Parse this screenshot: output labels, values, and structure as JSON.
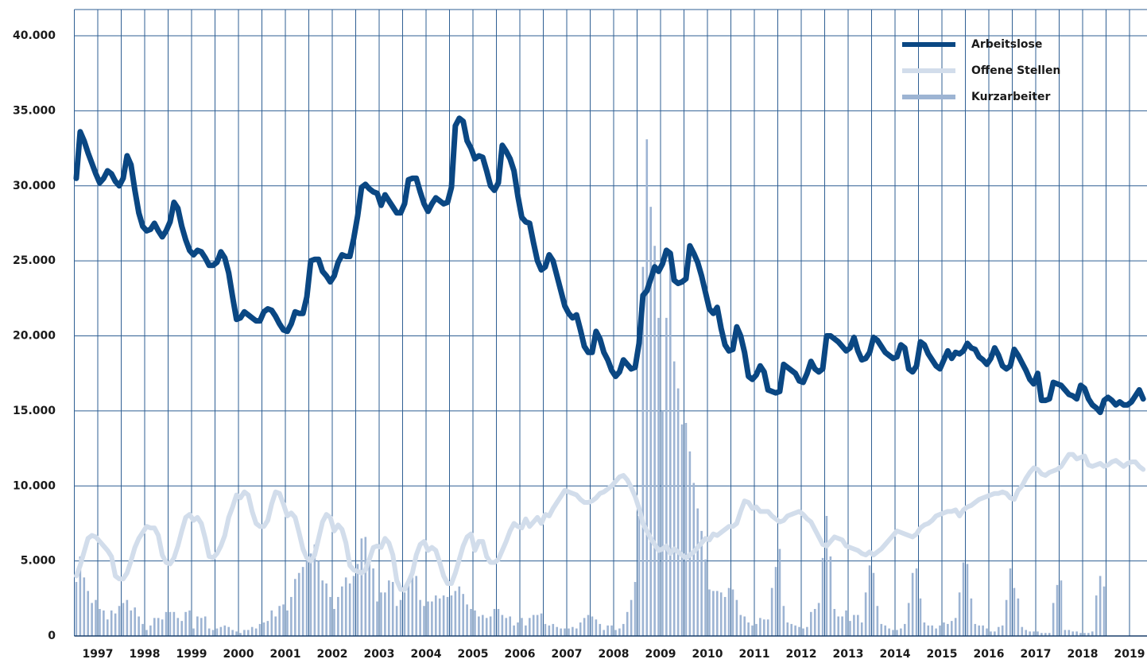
{
  "chart_data": {
    "type": "line",
    "categories": [
      null,
      null,
      null,
      null,
      null,
      null,
      "1997",
      null,
      null,
      null,
      null,
      null,
      null,
      null,
      null,
      null,
      null,
      null,
      "1998",
      null,
      null,
      null,
      null,
      null,
      null,
      null,
      null,
      null,
      null,
      null,
      "1999",
      null,
      null,
      null,
      null,
      null,
      null,
      null,
      null,
      null,
      null,
      null,
      "2000",
      null,
      null,
      null,
      null,
      null,
      null,
      null,
      null,
      null,
      null,
      null,
      "2001",
      null,
      null,
      null,
      null,
      null,
      null,
      null,
      null,
      null,
      null,
      null,
      "2002",
      null,
      null,
      null,
      null,
      null,
      null,
      null,
      null,
      null,
      null,
      null,
      "2003",
      null,
      null,
      null,
      null,
      null,
      null,
      null,
      null,
      null,
      null,
      null,
      "2004",
      null,
      null,
      null,
      null,
      null,
      null,
      null,
      null,
      null,
      null,
      null,
      "2005",
      null,
      null,
      null,
      null,
      null,
      null,
      null,
      null,
      null,
      null,
      null,
      "2006",
      null,
      null,
      null,
      null,
      null,
      null,
      null,
      null,
      null,
      null,
      null,
      "2007",
      null,
      null,
      null,
      null,
      null,
      null,
      null,
      null,
      null,
      null,
      null,
      "2008",
      null,
      null,
      null,
      null,
      null,
      null,
      null,
      null,
      null,
      null,
      null,
      "2009",
      null,
      null,
      null,
      null,
      null,
      null,
      null,
      null,
      null,
      null,
      null,
      "2010",
      null,
      null,
      null,
      null,
      null,
      null,
      null,
      null,
      null,
      null,
      null,
      "2011",
      null,
      null,
      null,
      null,
      null,
      null,
      null,
      null,
      null,
      null,
      null,
      "2012",
      null,
      null,
      null,
      null,
      null,
      null,
      null,
      null,
      null,
      null,
      null,
      "2013",
      null,
      null,
      null,
      null,
      null,
      null,
      null,
      null,
      null,
      null,
      null,
      "2014",
      null,
      null,
      null,
      null,
      null,
      null,
      null,
      null,
      null,
      null,
      null,
      "2015",
      null,
      null,
      null,
      null,
      null,
      null,
      null,
      null,
      null,
      null,
      null,
      "2016",
      null,
      null,
      null,
      null,
      null,
      null,
      null,
      null,
      null,
      null,
      null,
      "2017",
      null,
      null,
      null,
      null,
      null,
      null,
      null,
      null,
      null,
      null,
      null,
      "2018",
      null,
      null,
      null,
      null,
      null,
      null,
      null,
      null,
      null,
      null,
      null,
      "2019",
      null,
      null,
      null
    ],
    "series": [
      {
        "name": "Kurzarbeiter",
        "type": "bar",
        "color": "#9db4d3",
        "values": [
          3600,
          5300,
          3900,
          3000,
          2200,
          2400,
          1800,
          1700,
          1100,
          1700,
          1500,
          2000,
          2200,
          2400,
          1700,
          1900,
          1300,
          800,
          400,
          700,
          1200,
          1200,
          1100,
          1600,
          1600,
          1600,
          1200,
          1000,
          1600,
          1700,
          500,
          1300,
          1200,
          1300,
          500,
          400,
          500,
          600,
          700,
          600,
          400,
          300,
          200,
          400,
          400,
          600,
          500,
          800,
          900,
          1000,
          1700,
          1300,
          2000,
          2100,
          1700,
          2600,
          3800,
          4200,
          4600,
          5000,
          5500,
          6100,
          5000,
          3700,
          3500,
          2600,
          1800,
          2600,
          3300,
          3900,
          3500,
          4000,
          4800,
          6500,
          6600,
          5000,
          4500,
          2300,
          2900,
          2900,
          3700,
          3600,
          2000,
          2400,
          2900,
          3700,
          3900,
          4000,
          2400,
          2000,
          2300,
          2300,
          2700,
          2500,
          2700,
          2600,
          2700,
          3000,
          3300,
          2800,
          2100,
          1800,
          1700,
          1300,
          1400,
          1200,
          1300,
          1800,
          1800,
          1400,
          1200,
          1300,
          700,
          900,
          1200,
          700,
          1200,
          1400,
          1400,
          1500,
          800,
          700,
          800,
          600,
          500,
          500,
          500,
          600,
          500,
          900,
          1200,
          1400,
          1300,
          1100,
          800,
          400,
          700,
          700,
          400,
          500,
          800,
          1600,
          2400,
          3600,
          8000,
          24600,
          33100,
          28600,
          26000,
          21200,
          15000,
          21200,
          24600,
          18300,
          16500,
          14100,
          14200,
          12300,
          10200,
          8500,
          7000,
          5100,
          3100,
          3000,
          3000,
          2900,
          2600,
          3200,
          3100,
          2400,
          1400,
          1300,
          900,
          700,
          800,
          1200,
          1100,
          1100,
          3200,
          4600,
          5800,
          2000,
          900,
          800,
          700,
          600,
          500,
          600,
          1600,
          1800,
          2200,
          5200,
          8000,
          5300,
          1800,
          1300,
          1300,
          1700,
          1000,
          1400,
          1400,
          900,
          2900,
          4700,
          4200,
          2000,
          800,
          700,
          500,
          400,
          400,
          500,
          800,
          2200,
          4200,
          4500,
          2500,
          900,
          700,
          700,
          500,
          700,
          900,
          800,
          1000,
          1200,
          2900,
          4900,
          4800,
          2500,
          800,
          700,
          700,
          500,
          300,
          300,
          600,
          700,
          2400,
          4500,
          3200,
          2500,
          600,
          400,
          300,
          300,
          300,
          200,
          200,
          200,
          2200,
          3400,
          3700,
          400,
          400,
          300,
          300,
          200,
          200,
          200,
          300,
          2700,
          4000,
          3300,
          null,
          null,
          null,
          null,
          null,
          null,
          null,
          null,
          null,
          null
        ]
      },
      {
        "name": "Offene Stellen",
        "color": "#d2ddeb",
        "values": [
          4000,
          4700,
          5600,
          6500,
          6700,
          6600,
          6300,
          6000,
          5700,
          5300,
          4000,
          3800,
          3800,
          4200,
          5000,
          5900,
          6500,
          6900,
          7300,
          7200,
          7200,
          6700,
          5400,
          4900,
          4800,
          5200,
          6000,
          7000,
          7900,
          8100,
          7700,
          7900,
          7500,
          6500,
          5300,
          5200,
          5500,
          6000,
          6700,
          7900,
          8600,
          9400,
          9200,
          9600,
          9400,
          8300,
          7500,
          7300,
          7300,
          7700,
          8800,
          9600,
          9500,
          8800,
          8000,
          8200,
          7900,
          6900,
          5800,
          5200,
          5000,
          5400,
          6500,
          7600,
          8100,
          7900,
          7000,
          7400,
          7100,
          6200,
          4700,
          4400,
          4300,
          4200,
          4400,
          5100,
          5900,
          6000,
          5900,
          6500,
          6200,
          5400,
          3700,
          3100,
          3100,
          3600,
          4200,
          5400,
          6100,
          6300,
          5700,
          5900,
          5700,
          4900,
          4000,
          3500,
          3500,
          4200,
          5100,
          6000,
          6600,
          6800,
          5700,
          6300,
          6300,
          5300,
          4900,
          4900,
          5100,
          5700,
          6300,
          7000,
          7500,
          7300,
          7200,
          7800,
          7300,
          7600,
          7900,
          7500,
          8100,
          8000,
          8500,
          8900,
          9300,
          9700,
          9600,
          9500,
          9400,
          9100,
          8900,
          8900,
          9000,
          9200,
          9500,
          9600,
          9800,
          10000,
          10300,
          10600,
          10700,
          10400,
          9900,
          9300,
          8500,
          7500,
          7000,
          6500,
          6100,
          5700,
          5800,
          6000,
          5500,
          5800,
          5600,
          5400,
          5200,
          5400,
          5600,
          5900,
          6200,
          6500,
          6400,
          6800,
          6700,
          6900,
          7100,
          7300,
          7300,
          7500,
          8300,
          9000,
          8900,
          8500,
          8600,
          8300,
          8300,
          8300,
          8000,
          7800,
          7600,
          7700,
          8000,
          8100,
          8200,
          8300,
          8100,
          7800,
          7600,
          7100,
          6600,
          6100,
          6000,
          6300,
          6600,
          6500,
          6400,
          6000,
          5900,
          5800,
          5700,
          5500,
          5400,
          5600,
          5400,
          5600,
          5800,
          6100,
          6400,
          6700,
          7000,
          6900,
          6800,
          6700,
          6600,
          6800,
          7200,
          7400,
          7500,
          7700,
          8000,
          8100,
          8200,
          8300,
          8300,
          8400,
          8000,
          8400,
          8600,
          8700,
          8900,
          9100,
          9200,
          9300,
          9400,
          9500,
          9500,
          9600,
          9500,
          9200,
          9100,
          9700,
          10000,
          10500,
          10900,
          11200,
          11100,
          10800,
          10700,
          10900,
          11000,
          11100,
          11300,
          11700,
          12100,
          12100,
          11800,
          11900,
          12000,
          11400,
          11300,
          11400,
          11500,
          11300,
          11400,
          11600,
          11700,
          11500,
          11300,
          11500,
          11600,
          11600,
          11300,
          11100
        ]
      },
      {
        "name": "Arbeitslose",
        "color": "#0a4783",
        "values": [
          30500,
          33600,
          33000,
          32200,
          31500,
          30800,
          30200,
          30500,
          31000,
          30800,
          30300,
          30000,
          30500,
          32000,
          31400,
          29700,
          28200,
          27300,
          27000,
          27100,
          27500,
          27000,
          26600,
          27000,
          27600,
          28900,
          28500,
          27300,
          26400,
          25700,
          25400,
          25700,
          25600,
          25200,
          24700,
          24700,
          24900,
          25600,
          25200,
          24200,
          22600,
          21100,
          21200,
          21600,
          21400,
          21200,
          21000,
          21000,
          21600,
          21800,
          21700,
          21300,
          20800,
          20400,
          20300,
          20800,
          21600,
          21500,
          21500,
          22600,
          25000,
          25100,
          25100,
          24300,
          24000,
          23600,
          24000,
          24900,
          25400,
          25300,
          25300,
          26500,
          28000,
          29900,
          30100,
          29800,
          29600,
          29500,
          28700,
          29400,
          29000,
          28600,
          28200,
          28200,
          28800,
          30400,
          30500,
          30500,
          29600,
          28800,
          28300,
          28800,
          29200,
          29000,
          28800,
          28900,
          29900,
          34000,
          34500,
          34300,
          33000,
          32500,
          31800,
          32000,
          31900,
          31000,
          30000,
          29700,
          30200,
          32700,
          32300,
          31800,
          31000,
          29300,
          27900,
          27600,
          27500,
          26200,
          25000,
          24400,
          24600,
          25400,
          25000,
          24000,
          23000,
          22000,
          21500,
          21200,
          21400,
          20400,
          19300,
          18900,
          18900,
          20300,
          19800,
          18900,
          18400,
          17700,
          17300,
          17600,
          18400,
          18100,
          17800,
          17900,
          19500,
          22700,
          23000,
          23800,
          24600,
          24300,
          24800,
          25700,
          25500,
          23700,
          23500,
          23600,
          23800,
          26000,
          25500,
          24900,
          24000,
          22900,
          21800,
          21500,
          21900,
          20500,
          19400,
          19000,
          19100,
          20600,
          20000,
          18900,
          17300,
          17100,
          17400,
          18000,
          17600,
          16400,
          16300,
          16200,
          16300,
          18100,
          17900,
          17700,
          17500,
          17000,
          16900,
          17500,
          18300,
          17800,
          17600,
          17800,
          20000,
          20000,
          19800,
          19600,
          19300,
          19000,
          19200,
          19900,
          19000,
          18400,
          18500,
          18900,
          19900,
          19700,
          19300,
          18900,
          18700,
          18500,
          18600,
          19400,
          19200,
          17800,
          17600,
          18000,
          19600,
          19400,
          18800,
          18400,
          18000,
          17800,
          18400,
          19000,
          18500,
          18900,
          18800,
          19000,
          19500,
          19200,
          19100,
          18600,
          18400,
          18100,
          18500,
          19200,
          18700,
          18000,
          17800,
          18000,
          19100,
          18700,
          18200,
          17700,
          17100,
          16800,
          17500,
          15700,
          15700,
          15800,
          16900,
          16800,
          16700,
          16400,
          16100,
          16000,
          15800,
          16700,
          16500,
          15800,
          15400,
          15200,
          14900,
          15700,
          15900,
          15700,
          15400,
          15600,
          15400,
          15400,
          15600,
          16000,
          16400,
          15800
        ]
      }
    ],
    "legend_order": [
      "Arbeitslose",
      "Offene Stellen",
      "Kurzarbeiter"
    ],
    "ylim": [
      0,
      40000
    ],
    "yticks": [
      0,
      {
        "value": 5000,
        "label": "5.000"
      },
      {
        "value": 10000,
        "label": "10.000"
      },
      {
        "value": 15000,
        "label": "15.000"
      },
      {
        "value": 20000,
        "label": "20.000"
      },
      {
        "value": 25000,
        "label": "25.000"
      },
      {
        "value": 30000,
        "label": "30.000"
      },
      {
        "value": 35000,
        "label": "35.000"
      },
      {
        "value": 40000,
        "label": "40.000"
      }
    ],
    "grid": true,
    "legend": "upper right"
  }
}
